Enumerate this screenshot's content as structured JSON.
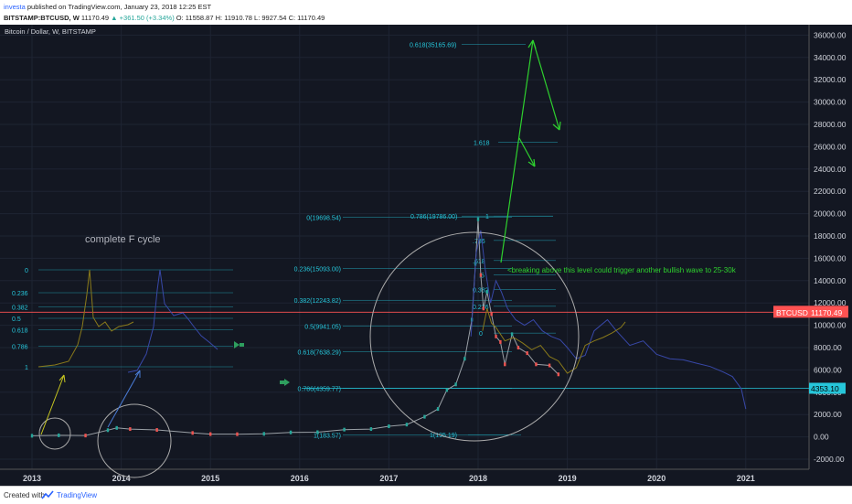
{
  "header": {
    "author": "investa",
    "published": "published on TradingView.com, January 23, 2018 12:25 EST",
    "symbol_line": "BITSTAMP:BTCUSD, W",
    "last": "11170.49",
    "change": "▲ +361.50 (+3.34%)",
    "open": "O: 11558.87",
    "high": "H: 11910.78",
    "low": "L: 9927.54",
    "close": "C: 11170.49"
  },
  "footer": {
    "created_with": "Created with",
    "brand": "TradingView"
  },
  "colors": {
    "background": "#131722",
    "fib_line": "#26c6da",
    "price_line": "#ff5252",
    "blue_series": "#3848a8",
    "olive_series": "#8a7a1a",
    "arrow_green": "#2ed12e",
    "arrow_yellow": "#c8c820"
  },
  "chart_data": {
    "type": "line",
    "title": "Bitcoin / Dollar, W, BITSTAMP",
    "xlim": [
      2012.8,
      2021.6
    ],
    "ylim": [
      -3000,
      37000
    ],
    "x_ticks": [
      "2013",
      "2014",
      "2015",
      "2016",
      "2017",
      "2018",
      "2019",
      "2020",
      "2021"
    ],
    "y_ticks": [
      36000,
      34000,
      32000,
      30000,
      28000,
      26000,
      24000,
      22000,
      20000,
      18000,
      16000,
      14000,
      12000,
      10000,
      8000,
      6000,
      4000,
      2000,
      0,
      -2000
    ],
    "y_tick_labels": [
      "36000.00",
      "34000.00",
      "32000.00",
      "30000.00",
      "28000.00",
      "26000.00",
      "24000.00",
      "22000.00",
      "20000.00",
      "18000.00",
      "16000.00",
      "14000.00",
      "12000.00",
      "10000.00",
      "8000.00",
      "6000.00",
      "4000.00",
      "2000.00",
      "0.00",
      "-2000.00"
    ],
    "price_label": {
      "name": "BTCUSD",
      "value": 11170.49,
      "text": "11170.49"
    },
    "level_label": {
      "value": 4353.1,
      "text": "4353.10"
    },
    "series": [
      {
        "kind": "main",
        "x": [
          2013.0,
          2013.3,
          2013.6,
          2013.85,
          2013.95,
          2014.1,
          2014.4,
          2014.8,
          2015.0,
          2015.3,
          2015.6,
          2015.9,
          2016.2,
          2016.5,
          2016.8,
          2017.0,
          2017.2,
          2017.4,
          2017.55,
          2017.65,
          2017.75,
          2017.85,
          2017.93,
          2017.97,
          2018.0,
          2018.03,
          2018.06,
          2018.1,
          2018.15,
          2018.2,
          2018.25,
          2018.3,
          2018.38,
          2018.45,
          2018.55,
          2018.65,
          2018.8,
          2018.9
        ],
        "y": [
          100,
          140,
          120,
          600,
          800,
          700,
          620,
          350,
          250,
          240,
          270,
          400,
          420,
          650,
          700,
          950,
          1100,
          1800,
          2500,
          4200,
          4700,
          7000,
          10500,
          15500,
          19500,
          14500,
          11500,
          13000,
          11000,
          9000,
          8500,
          6500,
          9200,
          8000,
          7500,
          6500,
          6400,
          5600
        ]
      },
      {
        "kind": "projection_blue",
        "x": [
          2017.92,
          2017.98,
          2018.03,
          2018.08,
          2018.14,
          2018.2,
          2018.26,
          2018.33,
          2018.42,
          2018.52,
          2018.62,
          2018.72,
          2018.82,
          2018.92,
          2019.0,
          2019.1,
          2019.2,
          2019.3,
          2019.45,
          2019.55,
          2019.7,
          2019.85,
          2020.0,
          2020.15,
          2020.3,
          2020.45,
          2020.6,
          2020.75,
          2020.85,
          2020.95,
          2021.0
        ],
        "y": [
          9000,
          16500,
          18500,
          15000,
          12000,
          14000,
          13000,
          11500,
          10500,
          10000,
          10500,
          9500,
          9000,
          8700,
          8000,
          7000,
          7300,
          9500,
          10500,
          9500,
          8200,
          8600,
          7400,
          7000,
          6900,
          6600,
          6300,
          5800,
          5400,
          4300,
          2500
        ]
      },
      {
        "kind": "projection_olive",
        "x": [
          2018.05,
          2018.1,
          2018.15,
          2018.2,
          2018.3,
          2018.4,
          2018.5,
          2018.6,
          2018.7,
          2018.8,
          2018.9,
          2019.0,
          2019.1,
          2019.2,
          2019.3,
          2019.4,
          2019.5,
          2019.6,
          2019.65
        ],
        "y": [
          9500,
          11500,
          10200,
          9800,
          8600,
          8900,
          8400,
          7800,
          8200,
          7200,
          6800,
          5700,
          6200,
          8200,
          8600,
          8900,
          9300,
          9800,
          10300
        ]
      }
    ],
    "fib_right": [
      {
        "label": "0.618(35165.69)",
        "value": 35166
      },
      {
        "label": "1.618",
        "value": 26400
      },
      {
        "label": "0.786(19786.00)",
        "value": 19786
      },
      {
        "label": "1",
        "value": 19786
      },
      {
        "label": ".786",
        "value": 17600
      },
      {
        "label": ".618",
        "value": 15800
      },
      {
        "label": ".5",
        "value": 14500
      },
      {
        "label": "0.382",
        "value": 13200
      },
      {
        "label": "0.236",
        "value": 11700
      },
      {
        "label": "0",
        "value": 9300
      },
      {
        "label": "1(195.19)",
        "value": 195
      }
    ],
    "fib_left": [
      {
        "label": "0(19698.54)",
        "value": 19698.54
      },
      {
        "label": "0.236(15093.00)",
        "value": 15093
      },
      {
        "label": "0.382(12243.82)",
        "value": 12243.82
      },
      {
        "label": "0.5(9941.05)",
        "value": 9941.05
      },
      {
        "label": "0.618(7638.29)",
        "value": 7638.29
      },
      {
        "label": "0.786(4359.77)",
        "value": 4359.77
      },
      {
        "label": "1(183.57)",
        "value": 183.57
      }
    ],
    "mini_fib": [
      "0",
      "0.236",
      "0.382",
      "0.5",
      "0.618",
      "0.786",
      "1"
    ],
    "annotations": {
      "cycle_text": "complete F cycle",
      "breakout_text": "<breaking above this level could trigger another bullish wave to 25-30k"
    }
  }
}
